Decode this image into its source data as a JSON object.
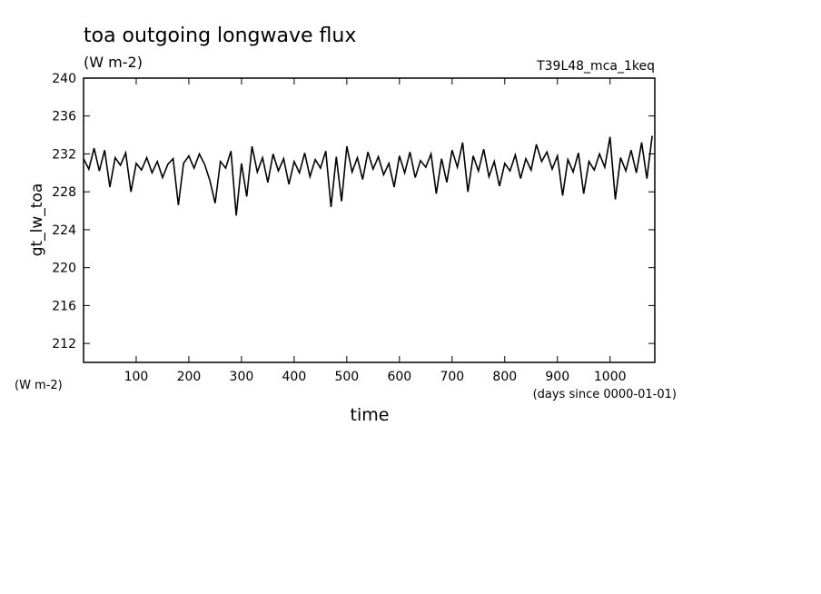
{
  "chart_data": {
    "type": "line",
    "title": "toa outgoing longwave flux",
    "subtitle": "(W m-2)",
    "run_label": "T39L48_mca_1keq",
    "y_label": "gt_lw_toa",
    "y_unit_label": "(W m-2)",
    "x_label": "time",
    "x_unit_label": "(days since 0000-01-01)",
    "color": "#000000",
    "xlim": [
      0,
      1085
    ],
    "ylim": [
      210,
      240
    ],
    "xticks": [
      100,
      200,
      300,
      400,
      500,
      600,
      700,
      800,
      900,
      1000
    ],
    "yticks": [
      212,
      216,
      220,
      224,
      228,
      232,
      236,
      240
    ],
    "x": [
      0,
      10,
      20,
      30,
      40,
      50,
      60,
      70,
      80,
      90,
      100,
      110,
      120,
      130,
      140,
      150,
      160,
      170,
      180,
      190,
      200,
      210,
      220,
      230,
      240,
      250,
      260,
      270,
      280,
      290,
      300,
      310,
      320,
      330,
      340,
      350,
      360,
      370,
      380,
      390,
      400,
      410,
      420,
      430,
      440,
      450,
      460,
      470,
      480,
      490,
      500,
      510,
      520,
      530,
      540,
      550,
      560,
      570,
      580,
      590,
      600,
      610,
      620,
      630,
      640,
      650,
      660,
      670,
      680,
      690,
      700,
      710,
      720,
      730,
      740,
      750,
      760,
      770,
      780,
      790,
      800,
      810,
      820,
      830,
      840,
      850,
      860,
      870,
      880,
      890,
      900,
      910,
      920,
      930,
      940,
      950,
      960,
      970,
      980,
      990,
      1000,
      1010,
      1020,
      1030,
      1040,
      1050,
      1060,
      1070,
      1080
    ],
    "values": [
      231.5,
      230.4,
      232.6,
      230.2,
      232.4,
      228.5,
      231.6,
      230.8,
      232.1,
      228.0,
      231.0,
      230.3,
      231.6,
      230.0,
      231.2,
      229.5,
      230.9,
      231.5,
      226.6,
      231.0,
      231.8,
      230.5,
      232.0,
      230.9,
      229.2,
      226.8,
      231.2,
      230.5,
      232.3,
      225.5,
      231.0,
      227.5,
      232.8,
      230.1,
      231.6,
      229.0,
      232.0,
      230.2,
      231.5,
      228.8,
      231.2,
      230.0,
      232.1,
      229.6,
      231.4,
      230.5,
      232.3,
      226.4,
      231.7,
      227.0,
      232.8,
      230.1,
      231.6,
      229.3,
      232.2,
      230.4,
      231.7,
      229.8,
      231.0,
      228.5,
      231.8,
      230.0,
      232.2,
      229.5,
      231.3,
      230.6,
      232.0,
      227.8,
      231.5,
      229.0,
      232.4,
      230.6,
      233.2,
      228.0,
      231.8,
      230.2,
      232.5,
      229.6,
      231.2,
      228.6,
      231.0,
      230.2,
      231.9,
      229.4,
      231.5,
      230.3,
      233.0,
      231.2,
      232.2,
      230.4,
      231.8,
      227.6,
      231.4,
      230.1,
      232.1,
      227.8,
      231.2,
      230.3,
      232.0,
      230.6,
      233.8,
      227.2,
      231.6,
      230.2,
      232.4,
      230.0,
      233.2,
      229.4,
      233.9
    ]
  }
}
